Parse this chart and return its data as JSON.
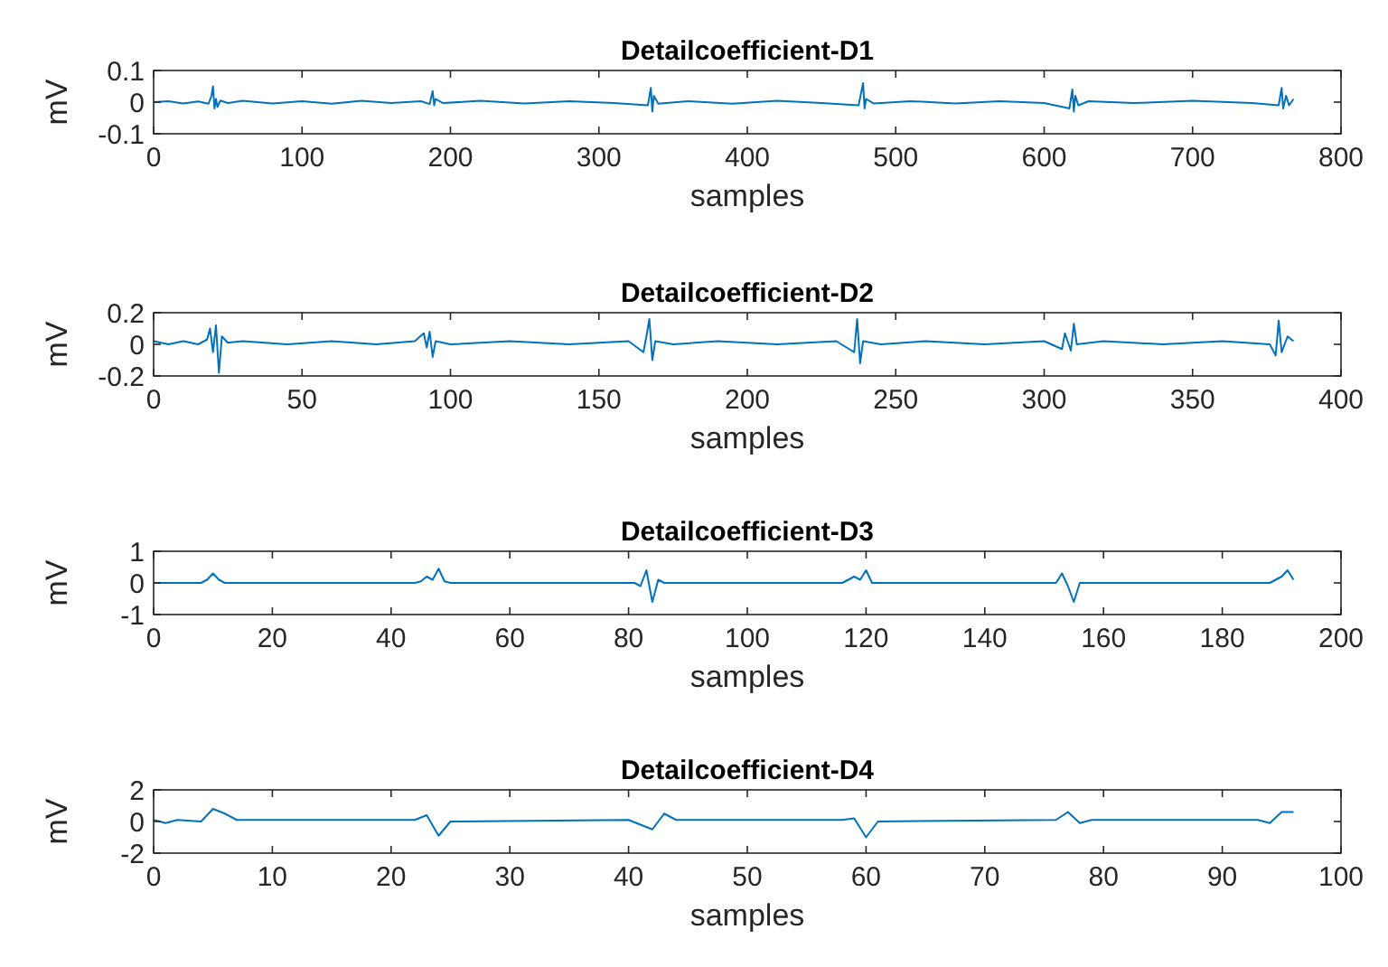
{
  "chart_data": [
    {
      "type": "line",
      "title": "Detailcoefficient-D1",
      "xlabel": "samples",
      "ylabel": "mV",
      "xlim": [
        0,
        800
      ],
      "xticks": [
        0,
        100,
        200,
        300,
        400,
        500,
        600,
        700,
        800
      ],
      "ylim": [
        -0.1,
        0.1
      ],
      "yticks": [
        -0.1,
        0,
        0.1
      ],
      "grid": false,
      "series": [
        {
          "color": "#0072bd",
          "x": [
            0,
            10,
            20,
            30,
            37,
            39,
            40,
            41,
            42,
            43,
            45,
            50,
            60,
            80,
            100,
            120,
            140,
            160,
            180,
            186,
            188,
            189,
            190,
            195,
            220,
            250,
            280,
            310,
            333,
            335,
            336,
            337,
            340,
            360,
            390,
            420,
            450,
            475,
            478,
            479,
            480,
            485,
            510,
            540,
            570,
            600,
            617,
            619,
            620,
            621,
            623,
            630,
            660,
            700,
            740,
            758,
            760,
            761,
            763,
            765,
            768
          ],
          "values": [
            0,
            0.003,
            -0.004,
            0.002,
            -0.005,
            0.02,
            0.05,
            -0.02,
            0.01,
            -0.015,
            0.005,
            -0.003,
            0.004,
            -0.004,
            0.003,
            -0.005,
            0.004,
            -0.003,
            0.003,
            -0.006,
            0.035,
            -0.01,
            0.01,
            -0.003,
            0.004,
            -0.004,
            0.003,
            -0.003,
            -0.01,
            0.045,
            -0.03,
            0.02,
            -0.005,
            0.003,
            -0.005,
            0.004,
            -0.003,
            -0.01,
            0.06,
            -0.02,
            0.01,
            -0.004,
            0.003,
            -0.004,
            0.003,
            -0.003,
            -0.02,
            0.04,
            -0.03,
            0.02,
            -0.01,
            0.003,
            -0.003,
            0.004,
            -0.003,
            -0.01,
            0.045,
            -0.02,
            0.02,
            -0.01,
            0.01
          ]
        }
      ]
    },
    {
      "type": "line",
      "title": "Detailcoefficient-D2",
      "xlabel": "samples",
      "ylabel": "mV",
      "xlim": [
        0,
        400
      ],
      "xticks": [
        0,
        50,
        100,
        150,
        200,
        250,
        300,
        350,
        400
      ],
      "ylim": [
        -0.2,
        0.2
      ],
      "yticks": [
        -0.2,
        0,
        0.2
      ],
      "grid": false,
      "series": [
        {
          "color": "#0072bd",
          "x": [
            0,
            5,
            10,
            15,
            18,
            19,
            20,
            21,
            22,
            23,
            25,
            30,
            45,
            60,
            75,
            88,
            91,
            92,
            93,
            94,
            95,
            100,
            120,
            140,
            160,
            165,
            166,
            167,
            168,
            169,
            175,
            190,
            210,
            230,
            236,
            237,
            238,
            239,
            245,
            260,
            280,
            300,
            306,
            307,
            309,
            310,
            311,
            320,
            340,
            360,
            376,
            378,
            379,
            380,
            382,
            384
          ],
          "values": [
            0.02,
            0,
            0.02,
            0,
            0.03,
            0.1,
            -0.05,
            0.12,
            -0.18,
            0.05,
            0.01,
            0.02,
            0,
            0.02,
            0,
            0.02,
            0.07,
            -0.02,
            0.08,
            -0.08,
            0.02,
            0,
            0.02,
            0,
            0.02,
            -0.05,
            0.05,
            0.16,
            -0.1,
            0.02,
            0,
            0.02,
            0,
            0.02,
            -0.05,
            0.16,
            -0.12,
            0.02,
            0,
            0.02,
            0,
            0.02,
            -0.03,
            0.07,
            -0.04,
            0.13,
            0,
            0.02,
            0,
            0.02,
            0,
            -0.07,
            0.15,
            -0.05,
            0.05,
            0.02
          ]
        }
      ]
    },
    {
      "type": "line",
      "title": "Detailcoefficient-D3",
      "xlabel": "samples",
      "ylabel": "mV",
      "xlim": [
        0,
        200
      ],
      "xticks": [
        0,
        20,
        40,
        60,
        80,
        100,
        120,
        140,
        160,
        180,
        200
      ],
      "ylim": [
        -1,
        1
      ],
      "yticks": [
        -1,
        0,
        1
      ],
      "grid": false,
      "series": [
        {
          "color": "#0072bd",
          "x": [
            0,
            8,
            9,
            10,
            11,
            12,
            44,
            45,
            46,
            47,
            48,
            49,
            50,
            81,
            82,
            83,
            84,
            85,
            86,
            116,
            117,
            118,
            119,
            120,
            121,
            122,
            152,
            153,
            154,
            155,
            156,
            157,
            188,
            189,
            190,
            191,
            192
          ],
          "values": [
            0,
            0,
            0.1,
            0.3,
            0.1,
            0,
            0,
            0.05,
            0.2,
            0.1,
            0.45,
            0.05,
            0,
            0,
            -0.1,
            0.4,
            -0.6,
            0.1,
            0,
            0,
            0.1,
            0.2,
            0.1,
            0.4,
            0,
            0,
            0,
            0.3,
            -0.1,
            -0.6,
            0,
            0,
            0,
            0.1,
            0.2,
            0.4,
            0.1
          ]
        }
      ]
    },
    {
      "type": "line",
      "title": "Detailcoefficient-D4",
      "xlabel": "samples",
      "ylabel": "mV",
      "xlim": [
        0,
        100
      ],
      "xticks": [
        0,
        10,
        20,
        30,
        40,
        50,
        60,
        70,
        80,
        90,
        100
      ],
      "ylim": [
        -2,
        2
      ],
      "yticks": [
        -2,
        0,
        2
      ],
      "grid": false,
      "series": [
        {
          "color": "#0072bd",
          "x": [
            0,
            1,
            2,
            4,
            5,
            6,
            7,
            22,
            23,
            24,
            25,
            40,
            42,
            43,
            44,
            58,
            59,
            60,
            61,
            76,
            77,
            78,
            79,
            93,
            94,
            95,
            96
          ],
          "values": [
            0.1,
            -0.1,
            0.1,
            0,
            0.8,
            0.5,
            0.1,
            0.1,
            0.4,
            -0.9,
            0,
            0.1,
            -0.5,
            0.5,
            0.1,
            0.1,
            0.2,
            -1,
            0,
            0.1,
            0.6,
            -0.1,
            0.1,
            0.1,
            -0.1,
            0.6,
            0.6
          ]
        }
      ]
    }
  ]
}
